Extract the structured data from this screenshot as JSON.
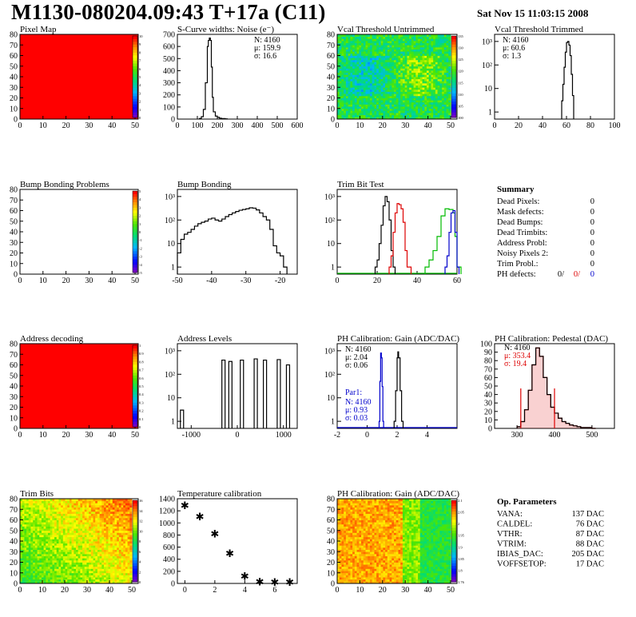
{
  "header": {
    "title": "M1130-080204.09:43 T+17a (C11)",
    "date": "Sat Nov 15 11:03:15 2008"
  },
  "panels": {
    "pixel_map": {
      "title": "Pixel Map",
      "y_ticks": [
        "0",
        "10",
        "20",
        "30",
        "40",
        "50",
        "60",
        "70",
        "80"
      ],
      "x_ticks": [
        "0",
        "10",
        "20",
        "30",
        "40",
        "50"
      ],
      "z_ticks": [
        "0",
        "1",
        "2",
        "3",
        "4",
        "5",
        "6",
        "7",
        "8",
        "9",
        "10"
      ]
    },
    "scurve": {
      "title": "S-Curve widths: Noise (e⁻)",
      "y_ticks": [
        "0",
        "100",
        "200",
        "300",
        "400",
        "500",
        "600",
        "700"
      ],
      "x_ticks": [
        "0",
        "100",
        "200",
        "300",
        "400",
        "500",
        "600"
      ],
      "stats": [
        "N: 4160",
        "μ: 159.9",
        "σ: 16.6"
      ]
    },
    "vcal_untrimmed": {
      "title": "Vcal Threshold Untrimmed",
      "y_ticks": [
        "0",
        "10",
        "20",
        "30",
        "40",
        "50",
        "60",
        "70",
        "80"
      ],
      "x_ticks": [
        "0",
        "10",
        "20",
        "30",
        "40",
        "50"
      ],
      "z_ticks": [
        "100",
        "105",
        "110",
        "115",
        "120",
        "125",
        "130",
        "135"
      ]
    },
    "vcal_trimmed": {
      "title": "Vcal Threshold Trimmed",
      "y_ticks": [
        "1",
        "10",
        "10²",
        "10³"
      ],
      "x_ticks": [
        "0",
        "20",
        "40",
        "60",
        "80",
        "100"
      ],
      "stats": [
        "N: 4160",
        "μ: 60.6",
        "σ: 1.3"
      ]
    },
    "bump_problems": {
      "title": "Bump Bonding Problems",
      "y_ticks": [
        "0",
        "10",
        "20",
        "30",
        "40",
        "50",
        "60",
        "70",
        "80"
      ],
      "x_ticks": [
        "0",
        "10",
        "20",
        "30",
        "40",
        "50"
      ],
      "z_ticks": [
        "-5",
        "-4",
        "-3",
        "-2",
        "-1",
        "0",
        "1",
        "2",
        "3",
        "4",
        "5"
      ]
    },
    "bump_bonding": {
      "title": "Bump Bonding",
      "y_ticks": [
        "1",
        "10",
        "10²",
        "10³"
      ],
      "x_ticks": [
        "-50",
        "-40",
        "-30",
        "-20"
      ]
    },
    "trim_bit": {
      "title": "Trim Bit Test",
      "y_ticks": [
        "1",
        "10",
        "10²",
        "10³"
      ],
      "x_ticks": [
        "0",
        "20",
        "40",
        "60"
      ]
    },
    "summary": {
      "title": "Summary",
      "rows": [
        {
          "label": "Dead Pixels:",
          "value": "0"
        },
        {
          "label": "Mask defects:",
          "value": "0"
        },
        {
          "label": "Dead Bumps:",
          "value": "0"
        },
        {
          "label": "Dead Trimbits:",
          "value": "0"
        },
        {
          "label": "Address Probl:",
          "value": "0"
        },
        {
          "label": "Noisy Pixels 2:",
          "value": "0"
        },
        {
          "label": "Trim Probl.:",
          "value": "0"
        }
      ],
      "ph_label": "PH defects:",
      "ph_values": [
        "0/",
        "0/",
        "0"
      ],
      "ph_colors": [
        "#000000",
        "#dd0000",
        "#0000cc"
      ]
    },
    "address_decoding": {
      "title": "Address decoding",
      "y_ticks": [
        "0",
        "10",
        "20",
        "30",
        "40",
        "50",
        "60",
        "70",
        "80"
      ],
      "x_ticks": [
        "0",
        "10",
        "20",
        "30",
        "40",
        "50"
      ],
      "z_ticks": [
        "0",
        "0.1",
        "0.2",
        "0.3",
        "0.4",
        "0.5",
        "0.6",
        "0.7",
        "0.8",
        "0.9",
        "1"
      ]
    },
    "address_levels": {
      "title": "Address Levels",
      "y_ticks": [
        "1",
        "10",
        "10²",
        "10³"
      ],
      "x_ticks": [
        "-1000",
        "0",
        "1000"
      ]
    },
    "ph_gain_hist": {
      "title": "PH Calibration: Gain (ADC/DAC)",
      "y_ticks": [
        "1",
        "10",
        "10²",
        "10³"
      ],
      "x_ticks": [
        "-2",
        "0",
        "2",
        "4"
      ],
      "stats": [
        "N: 4160",
        "μ: 2.04",
        "σ: 0.06"
      ],
      "par_title": "Par1:",
      "par_stats": [
        "N: 4160",
        "μ: 0.93",
        "σ: 0.03"
      ]
    },
    "ph_pedestal": {
      "title": "PH Calibration: Pedestal (DAC)",
      "y_ticks": [
        "0",
        "10",
        "20",
        "30",
        "40",
        "50",
        "60",
        "70",
        "80",
        "90",
        "100"
      ],
      "x_ticks": [
        "300",
        "400",
        "500"
      ],
      "stats": [
        "N: 4160",
        "μ: 353.4",
        "σ: 19.4"
      ],
      "stat_colors": [
        "#000000",
        "#dd0000",
        "#dd0000"
      ]
    },
    "trim_bits": {
      "title": "Trim Bits",
      "y_ticks": [
        "0",
        "10",
        "20",
        "30",
        "40",
        "50",
        "60",
        "70",
        "80"
      ],
      "x_ticks": [
        "0",
        "10",
        "20",
        "30",
        "40",
        "50"
      ],
      "z_ticks": [
        "0",
        "2",
        "4",
        "6",
        "8",
        "10",
        "12",
        "14",
        "16"
      ]
    },
    "temperature": {
      "title": "Temperature calibration",
      "y_ticks": [
        "0",
        "200",
        "400",
        "600",
        "800",
        "1000",
        "1200",
        "1400"
      ],
      "x_ticks": [
        "0",
        "2",
        "4",
        "6"
      ]
    },
    "ph_gain_map": {
      "title": "PH Calibration: Gain (ADC/DAC)",
      "y_ticks": [
        "0",
        "10",
        "20",
        "30",
        "40",
        "50",
        "60",
        "70",
        "80"
      ],
      "x_ticks": [
        "0",
        "10",
        "20",
        "30",
        "40",
        "50"
      ],
      "z_ticks": [
        "1.76",
        "1.8",
        "1.85",
        "1.9",
        "1.95",
        "2",
        "2.05",
        "2.1"
      ]
    },
    "op_params": {
      "title": "Op. Parameters",
      "rows": [
        {
          "label": "VANA:",
          "value": "137 DAC"
        },
        {
          "label": "CALDEL:",
          "value": "76 DAC"
        },
        {
          "label": "VTHR:",
          "value": "87 DAC"
        },
        {
          "label": "VTRIM:",
          "value": "88 DAC"
        },
        {
          "label": "IBIAS_DAC:",
          "value": "205 DAC"
        },
        {
          "label": "VOFFSETOP:",
          "value": "17 DAC"
        }
      ]
    }
  },
  "chart_data": [
    {
      "type": "heatmap",
      "name": "pixel_map",
      "xlim": [
        0,
        52
      ],
      "ylim": [
        0,
        80
      ],
      "uniform_value": 10,
      "zlim": [
        0,
        10
      ]
    },
    {
      "type": "bar",
      "name": "scurve",
      "xlim": [
        0,
        600
      ],
      "ylim": [
        0,
        700
      ],
      "x": [
        110,
        120,
        130,
        140,
        150,
        155,
        160,
        165,
        170,
        175,
        180,
        190,
        200,
        210,
        220,
        240
      ],
      "values": [
        5,
        20,
        80,
        300,
        600,
        650,
        670,
        650,
        430,
        180,
        60,
        25,
        15,
        8,
        4,
        2
      ]
    },
    {
      "type": "heatmap",
      "name": "vcal_untrimmed",
      "xlim": [
        0,
        52
      ],
      "ylim": [
        0,
        80
      ],
      "zlim": [
        100,
        137
      ]
    },
    {
      "type": "bar",
      "name": "vcal_trimmed",
      "log_y": true,
      "xlim": [
        0,
        100
      ],
      "ylim": [
        0.5,
        2000
      ],
      "x": [
        56,
        57,
        58,
        59,
        60,
        61,
        62,
        63,
        64,
        65
      ],
      "values": [
        3,
        15,
        80,
        350,
        900,
        1000,
        700,
        250,
        40,
        5
      ]
    },
    {
      "type": "heatmap",
      "name": "bump_problems",
      "xlim": [
        0,
        52
      ],
      "ylim": [
        0,
        80
      ],
      "zlim": [
        -5,
        5
      ]
    },
    {
      "type": "bar",
      "name": "bump_bonding",
      "log_y": true,
      "xlim": [
        -50,
        -15
      ],
      "ylim": [
        0.5,
        2000
      ],
      "x": [
        -50,
        -49,
        -48,
        -47,
        -46,
        -45,
        -44,
        -43,
        -42,
        -41,
        -40,
        -39,
        -38,
        -37,
        -36,
        -35,
        -34,
        -33,
        -32,
        -31,
        -30,
        -29,
        -28,
        -27,
        -26,
        -25,
        -24,
        -23,
        -22,
        -21,
        -20,
        -19
      ],
      "values": [
        4,
        15,
        25,
        30,
        40,
        55,
        70,
        80,
        90,
        110,
        120,
        100,
        90,
        110,
        140,
        170,
        200,
        230,
        260,
        280,
        300,
        330,
        320,
        270,
        200,
        140,
        100,
        40,
        8,
        4,
        3,
        1
      ]
    },
    {
      "type": "line",
      "name": "trim_bit",
      "log_y": true,
      "xlim": [
        0,
        60
      ],
      "ylim": [
        0.5,
        2000
      ],
      "series": [
        {
          "color": "#000000",
          "x": [
            19,
            20,
            21,
            22,
            23,
            24,
            25,
            26,
            27,
            28
          ],
          "values": [
            1,
            2,
            10,
            60,
            400,
            1000,
            600,
            100,
            5,
            1
          ]
        },
        {
          "color": "#dd0000",
          "x": [
            26,
            27,
            28,
            29,
            30,
            31,
            32,
            33,
            34,
            35,
            36
          ],
          "values": [
            1,
            3,
            30,
            200,
            500,
            450,
            300,
            80,
            5,
            1,
            1
          ]
        },
        {
          "color": "#00bb00",
          "x": [
            44,
            46,
            48,
            50,
            52,
            54,
            56,
            58,
            59,
            60
          ],
          "values": [
            1,
            2,
            5,
            20,
            150,
            300,
            280,
            200,
            20,
            1
          ]
        },
        {
          "color": "#0000cc",
          "x": [
            54,
            55,
            56,
            57,
            58,
            59,
            60
          ],
          "values": [
            1,
            3,
            30,
            200,
            250,
            30,
            1
          ]
        }
      ]
    },
    {
      "type": "heatmap",
      "name": "address_decoding",
      "xlim": [
        0,
        52
      ],
      "ylim": [
        0,
        80
      ],
      "uniform_value": 1,
      "zlim": [
        0,
        1
      ]
    },
    {
      "type": "bar",
      "name": "address_levels",
      "log_y": true,
      "xlim": [
        -1300,
        1300
      ],
      "ylim": [
        0.5,
        2000
      ],
      "x": [
        -1200,
        -300,
        -150,
        100,
        400,
        600,
        900,
        1100
      ],
      "values": [
        3,
        400,
        350,
        400,
        450,
        400,
        420,
        250
      ]
    },
    {
      "type": "line",
      "name": "ph_gain_hist",
      "log_y": true,
      "xlim": [
        -2,
        6
      ],
      "ylim": [
        0.5,
        2000
      ],
      "series": [
        {
          "color": "#000000",
          "x": [
            1.8,
            1.9,
            2.0,
            2.05,
            2.1,
            2.2,
            2.3
          ],
          "values": [
            1,
            20,
            500,
            900,
            500,
            20,
            1
          ]
        },
        {
          "color": "#0000cc",
          "x": [
            0.8,
            0.85,
            0.9,
            0.95,
            1.0,
            1.05
          ],
          "values": [
            1,
            50,
            800,
            500,
            30,
            1
          ]
        }
      ]
    },
    {
      "type": "bar",
      "name": "ph_pedestal",
      "xlim": [
        240,
        560
      ],
      "ylim": [
        0,
        100
      ],
      "x": [
        300,
        310,
        320,
        330,
        340,
        350,
        360,
        370,
        380,
        390,
        400,
        410,
        420,
        430,
        440,
        450,
        460,
        470,
        480,
        490,
        500
      ],
      "values": [
        2,
        8,
        22,
        45,
        75,
        95,
        85,
        60,
        40,
        25,
        18,
        12,
        8,
        6,
        4,
        3,
        2,
        1,
        1,
        1,
        0
      ]
    },
    {
      "type": "heatmap",
      "name": "trim_bits",
      "xlim": [
        0,
        52
      ],
      "ylim": [
        0,
        80
      ],
      "zlim": [
        0,
        16
      ]
    },
    {
      "type": "scatter",
      "name": "temperature",
      "xlim": [
        -0.5,
        7.5
      ],
      "ylim": [
        0,
        1500
      ],
      "x": [
        0,
        1,
        2,
        3,
        4,
        5,
        6,
        7
      ],
      "values": [
        1400,
        1200,
        900,
        550,
        150,
        50,
        40,
        45
      ]
    },
    {
      "type": "heatmap",
      "name": "ph_gain_map",
      "xlim": [
        0,
        52
      ],
      "ylim": [
        0,
        80
      ],
      "zlim": [
        1.76,
        2.1
      ]
    }
  ]
}
